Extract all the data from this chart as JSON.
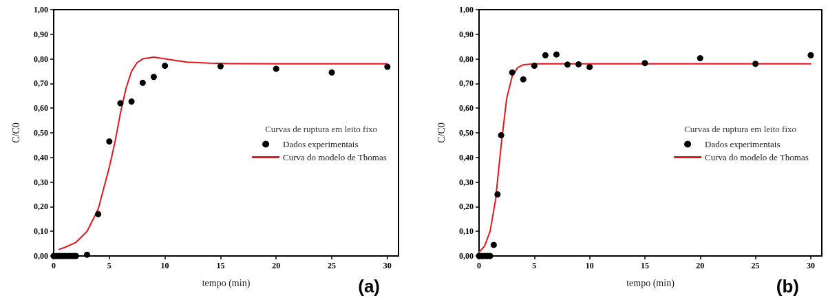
{
  "chart_data": [
    {
      "type": "scatter",
      "xlabel": "tempo (min)",
      "ylabel": "C/C0",
      "legend_title": "Curvas de ruptura em leito fixo",
      "legend": "right",
      "grid": false,
      "annotations": [
        "(a)"
      ],
      "xlim": [
        0,
        31
      ],
      "xticks": [
        0,
        5,
        10,
        15,
        20,
        25,
        30
      ],
      "ylim": [
        0,
        1
      ],
      "yticks": [
        {
          "value": 0,
          "label": "0,00"
        },
        {
          "value": 0.1,
          "label": "0,10"
        },
        {
          "value": 0.2,
          "label": "0,20"
        },
        {
          "value": 0.3,
          "label": "0,30"
        },
        {
          "value": 0.4,
          "label": "0,40"
        },
        {
          "value": 0.5,
          "label": "0,50"
        },
        {
          "value": 0.6,
          "label": "0,60"
        },
        {
          "value": 0.7,
          "label": "0,70"
        },
        {
          "value": 0.8,
          "label": "0,80"
        },
        {
          "value": 0.9,
          "label": "0,90"
        },
        {
          "value": 1,
          "label": "1,00"
        }
      ],
      "series": [
        {
          "name": "Dados experimentais",
          "marker": "circle",
          "color": "#000000",
          "x": [
            0,
            0.25,
            0.5,
            0.75,
            1,
            1.25,
            1.5,
            1.75,
            2,
            3,
            4,
            5,
            6,
            7,
            8,
            9,
            10,
            15,
            20,
            25,
            30
          ],
          "values": [
            0,
            0,
            0,
            0,
            0,
            0,
            0,
            0,
            0,
            0.005,
            0.17,
            0.465,
            0.62,
            0.627,
            0.703,
            0.727,
            0.772,
            0.77,
            0.76,
            0.745,
            0.768
          ]
        },
        {
          "name": "Curva do modelo de Thomas",
          "type": "line",
          "marker": "none",
          "line_style": "solid",
          "color": "#e8141b",
          "x": [
            0.5,
            1,
            2,
            3,
            4,
            5,
            5.5,
            6,
            6.5,
            7,
            7.5,
            8,
            9,
            10,
            11,
            12,
            14,
            16,
            20,
            30
          ],
          "values": [
            0.027,
            0.035,
            0.055,
            0.1,
            0.19,
            0.36,
            0.46,
            0.58,
            0.68,
            0.75,
            0.785,
            0.8,
            0.807,
            0.8,
            0.793,
            0.787,
            0.783,
            0.781,
            0.78,
            0.78
          ]
        }
      ]
    },
    {
      "type": "scatter",
      "xlabel": "tempo (min)",
      "ylabel": "C/C0",
      "legend_title": "Curvas de ruptura em leito fixo",
      "legend": "right",
      "grid": false,
      "annotations": [
        "(b)"
      ],
      "xlim": [
        0,
        31
      ],
      "xticks": [
        0,
        5,
        10,
        15,
        20,
        25,
        30
      ],
      "ylim": [
        0,
        1
      ],
      "yticks": [
        {
          "value": 0,
          "label": "0,00"
        },
        {
          "value": 0.1,
          "label": "0,10"
        },
        {
          "value": 0.2,
          "label": "0,20"
        },
        {
          "value": 0.3,
          "label": "0,30"
        },
        {
          "value": 0.4,
          "label": "0,40"
        },
        {
          "value": 0.5,
          "label": "0,50"
        },
        {
          "value": 0.6,
          "label": "0,60"
        },
        {
          "value": 0.7,
          "label": "0,70"
        },
        {
          "value": 0.8,
          "label": "0,80"
        },
        {
          "value": 0.9,
          "label": "0,90"
        },
        {
          "value": 1,
          "label": "1,00"
        }
      ],
      "series": [
        {
          "name": "Dados experimentais",
          "marker": "circle",
          "color": "#000000",
          "x": [
            0,
            0.25,
            0.5,
            0.75,
            1,
            1.33,
            1.67,
            2,
            3,
            4,
            5,
            6,
            7,
            8,
            9,
            10,
            15,
            20,
            25,
            30
          ],
          "values": [
            0,
            0,
            0,
            0,
            0,
            0.045,
            0.25,
            0.49,
            0.745,
            0.717,
            0.772,
            0.815,
            0.818,
            0.777,
            0.778,
            0.767,
            0.783,
            0.803,
            0.78,
            0.815
          ]
        },
        {
          "name": "Curva do modelo de Thomas",
          "type": "line",
          "marker": "none",
          "line_style": "solid",
          "color": "#e8141b",
          "x": [
            0,
            0.5,
            1,
            1.5,
            2,
            2.5,
            3,
            3.5,
            4,
            5,
            30
          ],
          "values": [
            0.015,
            0.04,
            0.1,
            0.23,
            0.45,
            0.64,
            0.73,
            0.765,
            0.776,
            0.78,
            0.78
          ]
        }
      ]
    }
  ]
}
